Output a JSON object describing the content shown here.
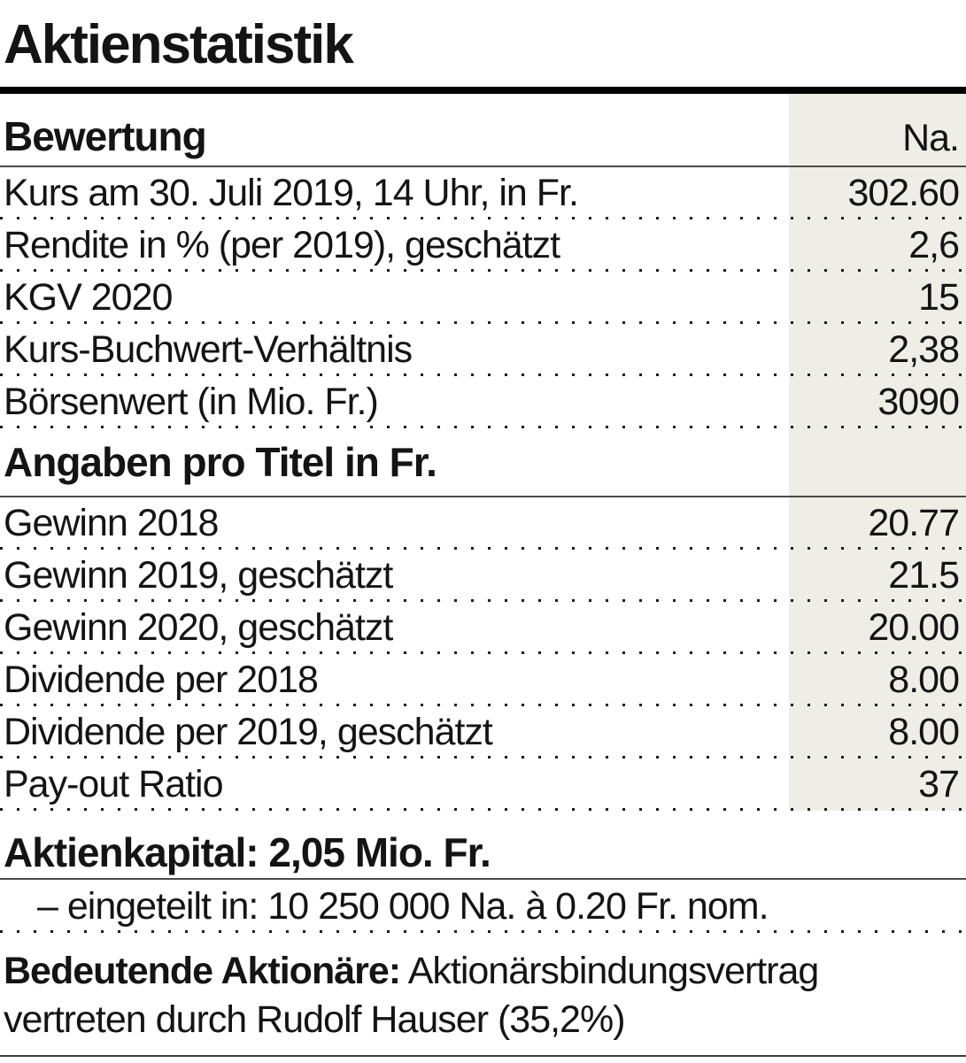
{
  "title": "Aktienstatistik",
  "table": {
    "col_header": "Na.",
    "sections": [
      {
        "header": "Bewertung",
        "rows": [
          {
            "label": "Kurs am 30. Juli 2019, 14 Uhr, in Fr.",
            "value": "302.60"
          },
          {
            "label": "Rendite in % (per 2019), geschätzt",
            "value": "2,6"
          },
          {
            "label": "KGV 2020",
            "value": "15"
          },
          {
            "label": "Kurs-Buchwert-Verhältnis",
            "value": "2,38"
          },
          {
            "label": "Börsenwert (in Mio. Fr.)",
            "value": "3090"
          }
        ]
      },
      {
        "header": "Angaben pro Titel in Fr.",
        "rows": [
          {
            "label": "Gewinn 2018",
            "value": "20.77"
          },
          {
            "label": "Gewinn 2019, geschätzt",
            "value": "21.5"
          },
          {
            "label": "Gewinn 2020, geschätzt",
            "value": "20.00"
          },
          {
            "label": "Dividende per 2018",
            "value": "8.00"
          },
          {
            "label": "Dividende per 2019, geschätzt",
            "value": "8.00"
          },
          {
            "label": "Pay-out Ratio",
            "value": "37"
          }
        ]
      }
    ]
  },
  "capital": {
    "header": "Aktienkapital: 2,05 Mio. Fr.",
    "detail": "– eingeteilt in: 10 250 000 Na. à 0.20 Fr. nom."
  },
  "shareholders": {
    "label": "Bedeutende Aktionäre:",
    "line1": "Aktionärsbindungsvertrag",
    "line2": "vertreten durch Rudolf Hauser (35,2%)"
  },
  "colors": {
    "value_column_bg": "#efeee6",
    "rule_black": "#000000",
    "rule_gray": "#4a4a4a",
    "dot_separator": "#1b1b1b"
  }
}
